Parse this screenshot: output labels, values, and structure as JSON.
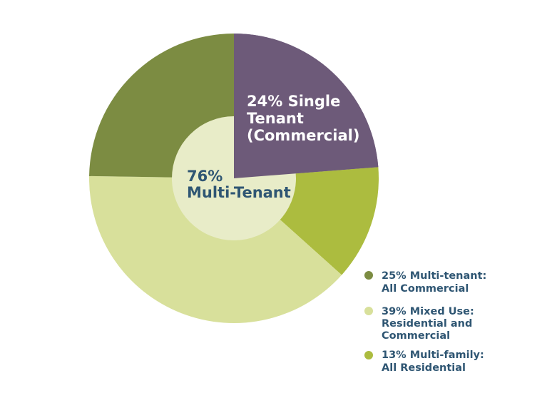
{
  "chart_data": {
    "type": "pie",
    "title": "",
    "slices": [
      {
        "label": "24% Single Tenant (Commercial)",
        "value": 24,
        "color": "#6d5a79"
      },
      {
        "label": "13% Multi-family: All Residential",
        "value": 13,
        "color": "#acbc3f"
      },
      {
        "label": "39% Mixed Use: Residential and Commercial",
        "value": 39,
        "color": "#d8e09b"
      },
      {
        "label": "25% Multi-tenant: All Commercial",
        "value": 25,
        "color": "#7c8c42"
      }
    ],
    "inner_group": {
      "label": "76% Multi-Tenant",
      "value": 76,
      "color": "#e8ecc8"
    },
    "legend_placement": "bottom-right"
  },
  "labels": {
    "single_tenant_lines": [
      "24% Single",
      "Tenant",
      "(Commercial)"
    ],
    "multi_tenant_lines": [
      "76%",
      "Multi-Tenant"
    ]
  },
  "legend": [
    {
      "lines": [
        "25% Multi-tenant:",
        "All Commercial"
      ],
      "color": "#7c8c42"
    },
    {
      "lines": [
        "39% Mixed Use:",
        "Residential and",
        "Commercial"
      ],
      "color": "#d8e09b"
    },
    {
      "lines": [
        "13% Multi-family:",
        "All Residential"
      ],
      "color": "#acbc3f"
    }
  ]
}
